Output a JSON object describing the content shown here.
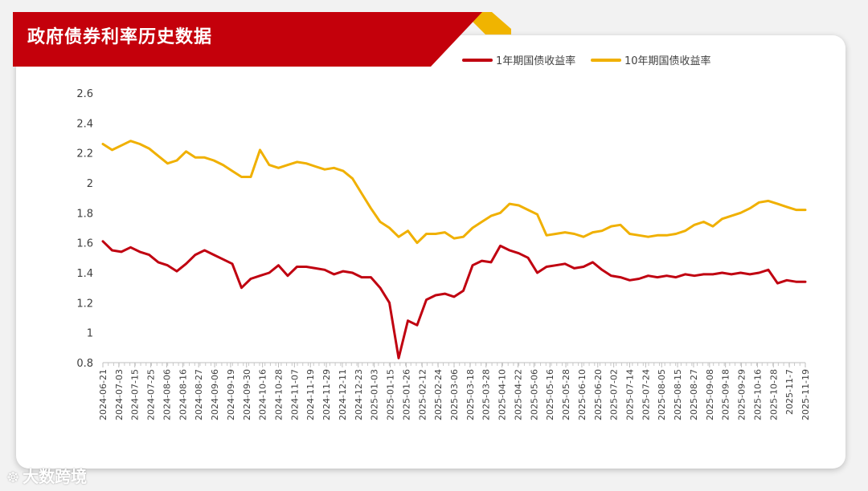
{
  "header": {
    "title": "政府债券利率历史数据"
  },
  "watermark": {
    "text": "大数跨境",
    "icon": "chart-logo-icon"
  },
  "colors": {
    "banner": "#c4000b",
    "banner_accent": "#f0b400",
    "series_1y": "#c00010",
    "series_10y": "#f0b000",
    "axis": "#bfbfbf",
    "text": "#404040"
  },
  "chart_data": {
    "type": "line",
    "title": "政府债券利率历史数据",
    "xlabel": "",
    "ylabel": "",
    "ylim": [
      0.8,
      2.6
    ],
    "yticks": [
      "0.8",
      "1",
      "1.2",
      "1.4",
      "1.6",
      "1.8",
      "2",
      "2.2",
      "2.4",
      "2.6"
    ],
    "grid": false,
    "legend": "top-right",
    "xtick_labels": [
      "2024-06-21",
      "2024-07-03",
      "2024-07-15",
      "2024-07-25",
      "2024-08-06",
      "2024-08-16",
      "2024-08-27",
      "2024-09-06",
      "2024-09-19",
      "2024-09-30",
      "2024-10-16",
      "2024-10-28",
      "2024-11-07",
      "2024-11-19",
      "2024-11-29",
      "2024-12-11",
      "2024-12-23",
      "2025-01-03",
      "2025-01-15",
      "2025-01-26",
      "2025-02-12",
      "2025-02-24",
      "2025-03-06",
      "2025-03-18",
      "2025-03-28",
      "2025-04-10",
      "2025-04-22",
      "2025-05-06",
      "2025-05-16",
      "2025-05-28",
      "2025-06-10",
      "2025-06-20",
      "2025-07-02",
      "2025-07-14",
      "2025-07-24",
      "2025-08-05",
      "2025-08-15",
      "2025-08-27",
      "2025-09-08",
      "2025-09-18",
      "2025-09-29",
      "2025-10-16",
      "2025-10-28",
      "2025-11-7",
      "2025-11-19"
    ],
    "series": [
      {
        "name": "1年期国债收益率",
        "color": "#c00010",
        "values": [
          1.61,
          1.55,
          1.54,
          1.57,
          1.54,
          1.52,
          1.47,
          1.45,
          1.41,
          1.46,
          1.52,
          1.55,
          1.52,
          1.49,
          1.46,
          1.3,
          1.36,
          1.38,
          1.4,
          1.45,
          1.38,
          1.44,
          1.44,
          1.43,
          1.42,
          1.39,
          1.41,
          1.4,
          1.37,
          1.37,
          1.3,
          1.2,
          0.83,
          1.08,
          1.05,
          1.22,
          1.25,
          1.26,
          1.24,
          1.28,
          1.45,
          1.48,
          1.47,
          1.58,
          1.55,
          1.53,
          1.5,
          1.4,
          1.44,
          1.45,
          1.46,
          1.43,
          1.44,
          1.47,
          1.42,
          1.38,
          1.37,
          1.35,
          1.36,
          1.38,
          1.37,
          1.38,
          1.37,
          1.39,
          1.38,
          1.39,
          1.39,
          1.4,
          1.39,
          1.4,
          1.39,
          1.4,
          1.42,
          1.33,
          1.35,
          1.34,
          1.34
        ]
      },
      {
        "name": "10年期国债收益率",
        "color": "#f0b000",
        "values": [
          2.26,
          2.22,
          2.25,
          2.28,
          2.26,
          2.23,
          2.18,
          2.13,
          2.15,
          2.21,
          2.17,
          2.17,
          2.15,
          2.12,
          2.08,
          2.04,
          2.04,
          2.22,
          2.12,
          2.1,
          2.12,
          2.14,
          2.13,
          2.11,
          2.09,
          2.1,
          2.08,
          2.03,
          1.93,
          1.83,
          1.74,
          1.7,
          1.64,
          1.68,
          1.6,
          1.66,
          1.66,
          1.67,
          1.63,
          1.64,
          1.7,
          1.74,
          1.78,
          1.8,
          1.86,
          1.85,
          1.82,
          1.79,
          1.65,
          1.66,
          1.67,
          1.66,
          1.64,
          1.67,
          1.68,
          1.71,
          1.72,
          1.66,
          1.65,
          1.64,
          1.65,
          1.65,
          1.66,
          1.68,
          1.72,
          1.74,
          1.71,
          1.76,
          1.78,
          1.8,
          1.83,
          1.87,
          1.88,
          1.86,
          1.84,
          1.82,
          1.82
        ]
      }
    ]
  }
}
